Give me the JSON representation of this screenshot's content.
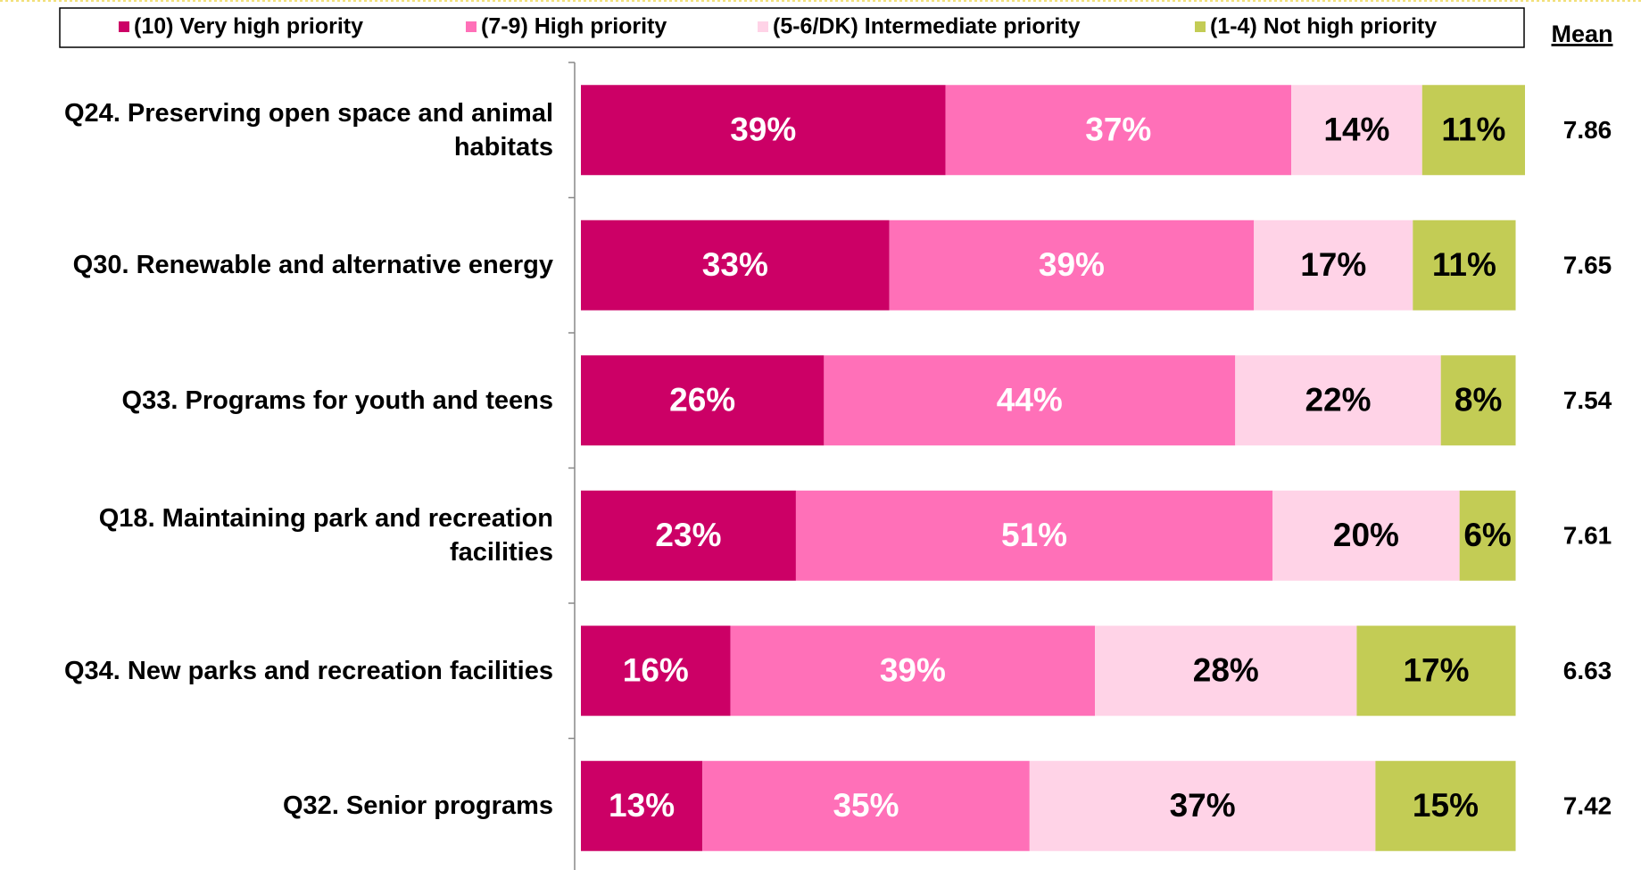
{
  "chart_data": {
    "type": "stacked-bar-horizontal",
    "categories": [
      "Q24. Preserving open space and animal habitats",
      "Q30. Renewable and alternative energy",
      "Q33. Programs for youth and teens",
      "Q18. Maintaining park and recreation facilities",
      "Q34. New parks and recreation facilities",
      "Q32. Senior programs"
    ],
    "series": [
      {
        "name": "(10) Very high priority",
        "color": "#cc0066",
        "label_color": "#ffffff",
        "values": [
          39,
          33,
          26,
          23,
          16,
          13
        ],
        "value_labels": [
          "39%",
          "33%",
          "26%",
          "23%",
          "16%",
          "13%"
        ]
      },
      {
        "name": "(7-9) High priority",
        "color": "#ff70b8",
        "label_color": "#ffffff",
        "values": [
          37,
          39,
          44,
          51,
          39,
          35
        ],
        "value_labels": [
          "37%",
          "39%",
          "44%",
          "51%",
          "39%",
          "35%"
        ]
      },
      {
        "name": "(5-6/DK) Intermediate priority",
        "color": "#ffd3e7",
        "label_color": "#000000",
        "values": [
          14,
          17,
          22,
          20,
          28,
          37
        ],
        "value_labels": [
          "14%",
          "17%",
          "22%",
          "20%",
          "28%",
          "37%"
        ]
      },
      {
        "name": "(1-4) Not high priority",
        "color": "#c3cc55",
        "label_color": "#000000",
        "values": [
          11,
          11,
          8,
          6,
          17,
          15
        ],
        "value_labels": [
          "11%",
          "11%",
          "8%",
          "6%",
          "17%",
          "15%"
        ]
      }
    ],
    "mean_label": "Mean",
    "means": [
      7.86,
      7.65,
      7.54,
      7.61,
      6.63,
      7.42
    ],
    "xlim": [
      0,
      101
    ]
  }
}
